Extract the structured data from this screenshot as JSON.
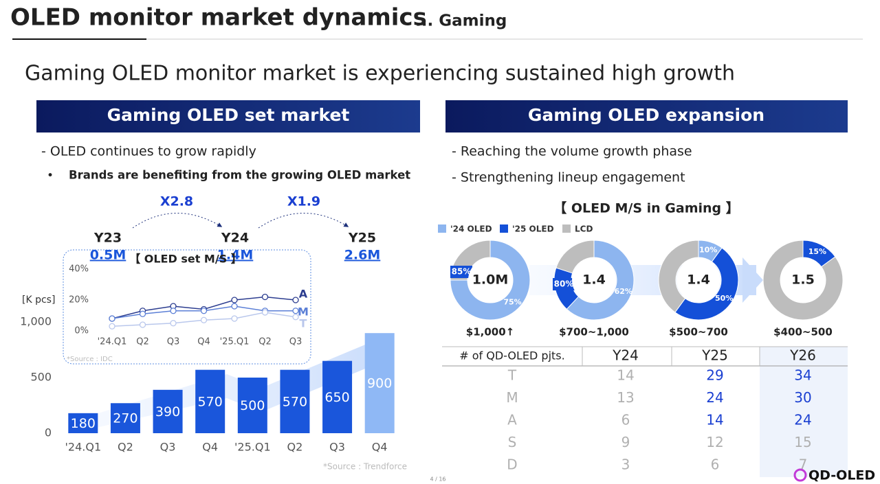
{
  "header": {
    "title": "OLED monitor market dynamics",
    "subtitle": "... Gaming"
  },
  "headline": "Gaming OLED monitor market is experiencing sustained high growth",
  "left": {
    "panel_title": "Gaming OLED set market",
    "bullets": [
      "- OLED continues to grow rapidly",
      "Brands are benefiting from the growing OLED market"
    ],
    "milestones": [
      {
        "year": "Y23",
        "volume": "0.5M"
      },
      {
        "year": "Y24",
        "volume": "1.4M"
      },
      {
        "year": "Y25",
        "volume": "2.6M"
      }
    ],
    "multipliers": [
      "X2.8",
      "X1.9"
    ]
  },
  "chart_data": [
    {
      "type": "bar",
      "y_label": "[K pcs]",
      "categories": [
        "'24.Q1",
        "Q2",
        "Q3",
        "Q4",
        "'25.Q1",
        "Q2",
        "Q3",
        "Q4"
      ],
      "values": [
        180,
        270,
        390,
        570,
        500,
        570,
        650,
        900
      ],
      "colors": [
        "#1a56db",
        "#1a56db",
        "#1a56db",
        "#1a56db",
        "#1a56db",
        "#1a56db",
        "#1a56db",
        "#8fb8f5"
      ],
      "ylim": [
        0,
        1000
      ],
      "yticks": [
        0,
        500,
        {
          "value": 1000,
          "label": "1,000"
        }
      ],
      "source": "*Source : Trendforce"
    },
    {
      "type": "line",
      "title": "【 OLED set M/S 】",
      "categories": [
        "'24.Q1",
        "Q2",
        "Q3",
        "Q4",
        "'25.Q1",
        "Q2",
        "Q3"
      ],
      "series": [
        {
          "name": "A",
          "color": "#2b3c8f",
          "values": [
            8,
            13,
            16,
            14,
            20,
            22,
            20
          ]
        },
        {
          "name": "M",
          "color": "#5b7fd6",
          "values": [
            8,
            11,
            13,
            13,
            16,
            13,
            13
          ]
        },
        {
          "name": "T",
          "color": "#b9c7ec",
          "values": [
            3,
            4,
            5,
            7,
            8,
            12,
            9
          ]
        }
      ],
      "ylim": [
        0,
        40
      ],
      "yticks": [
        {
          "value": 0,
          "label": "0%"
        },
        {
          "value": 20,
          "label": "20%"
        },
        {
          "value": 40,
          "label": "40%"
        }
      ],
      "source": "*Source : IDC"
    }
  ],
  "right": {
    "panel_title": "Gaming OLED expansion",
    "bullets": [
      "- Reaching the volume growth phase",
      "- Strengthening lineup engagement"
    ],
    "donut_title": "【 OLED M/S in Gaming 】",
    "legend": [
      {
        "name": "'24 OLED",
        "color": "#8db5ef"
      },
      {
        "name": "'25 OLED",
        "color": "#1450d8"
      },
      {
        "name": "LCD",
        "color": "#bdbdbd"
      }
    ],
    "donuts": [
      {
        "center_label": "1.0M",
        "price": "$1,000↑",
        "values": [
          75,
          25
        ],
        "colors": [
          "#8db5ef",
          "#bdbdbd"
        ],
        "value_labels": [
          "75%",
          null
        ],
        "annotation": "85%"
      },
      {
        "center_label": "1.4",
        "price": "$700~1,000",
        "values": [
          62,
          18,
          20
        ],
        "colors": [
          "#8db5ef",
          "#1450d8",
          "#bdbdbd"
        ],
        "value_labels": [
          "62%",
          null,
          null
        ],
        "annotation": "80%"
      },
      {
        "center_label": "1.4",
        "price": "$500~700",
        "values": [
          10,
          50,
          40
        ],
        "colors": [
          "#8db5ef",
          "#1450d8",
          "#bdbdbd"
        ],
        "value_labels": [
          "10%",
          "50%",
          null
        ]
      },
      {
        "center_label": "1.5",
        "price": "$400~500",
        "values": [
          15,
          85
        ],
        "colors": [
          "#1450d8",
          "#bdbdbd"
        ],
        "value_labels": [
          "15%",
          null
        ]
      }
    ],
    "table": {
      "header": [
        "# of QD-OLED pjts.",
        "Y24",
        "Y25",
        "Y26"
      ],
      "rows": [
        [
          "T",
          14,
          29,
          34
        ],
        [
          "M",
          13,
          24,
          30
        ],
        [
          "A",
          6,
          14,
          24
        ],
        [
          "S",
          9,
          12,
          15
        ],
        [
          "D",
          3,
          6,
          7
        ]
      ]
    }
  },
  "footer": {
    "page": "4 / 16",
    "logo": "QD-OLED"
  }
}
